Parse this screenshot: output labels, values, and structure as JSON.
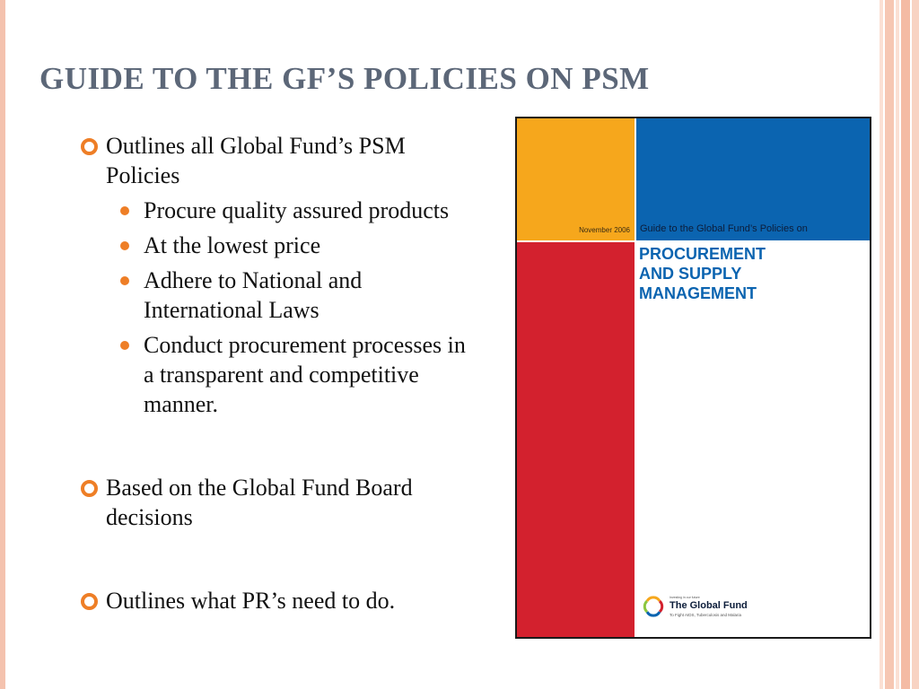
{
  "slide": {
    "title": "GUIDE TO THE GF’S POLICIES ON PSM",
    "bullets": [
      {
        "text": "Outlines all Global Fund’s PSM Policies",
        "subitems": [
          "Procure quality assured products",
          "At the lowest price",
          "Adhere to National and International Laws",
          "Conduct procurement processes in a transparent and competitive manner."
        ]
      },
      {
        "text": "Based on the Global Fund Board decisions"
      },
      {
        "text": "Outlines what PR’s need to do."
      }
    ]
  },
  "cover": {
    "date": "November 2006",
    "guide_line": "Guide to the Global Fund’s Policies on",
    "heading_lines": [
      "PROCUREMENT",
      "AND SUPPLY",
      "MANAGEMENT"
    ],
    "logo_tagline": "Investing in our future",
    "logo_name": "The Global Fund",
    "logo_subtitle": "To Fight AIDS, Tuberculosis and Malaria"
  },
  "colors": {
    "title": "#5c6778",
    "bullet_accent": "#ee7e26",
    "cover_yellow": "#f6a71c",
    "cover_blue": "#0b64b0",
    "cover_red": "#d3212e"
  },
  "icons": {
    "bullet": "orange-ring-bullet-icon",
    "subbullet": "orange-dot-bullet-icon",
    "logo": "global-fund-logo-icon"
  }
}
